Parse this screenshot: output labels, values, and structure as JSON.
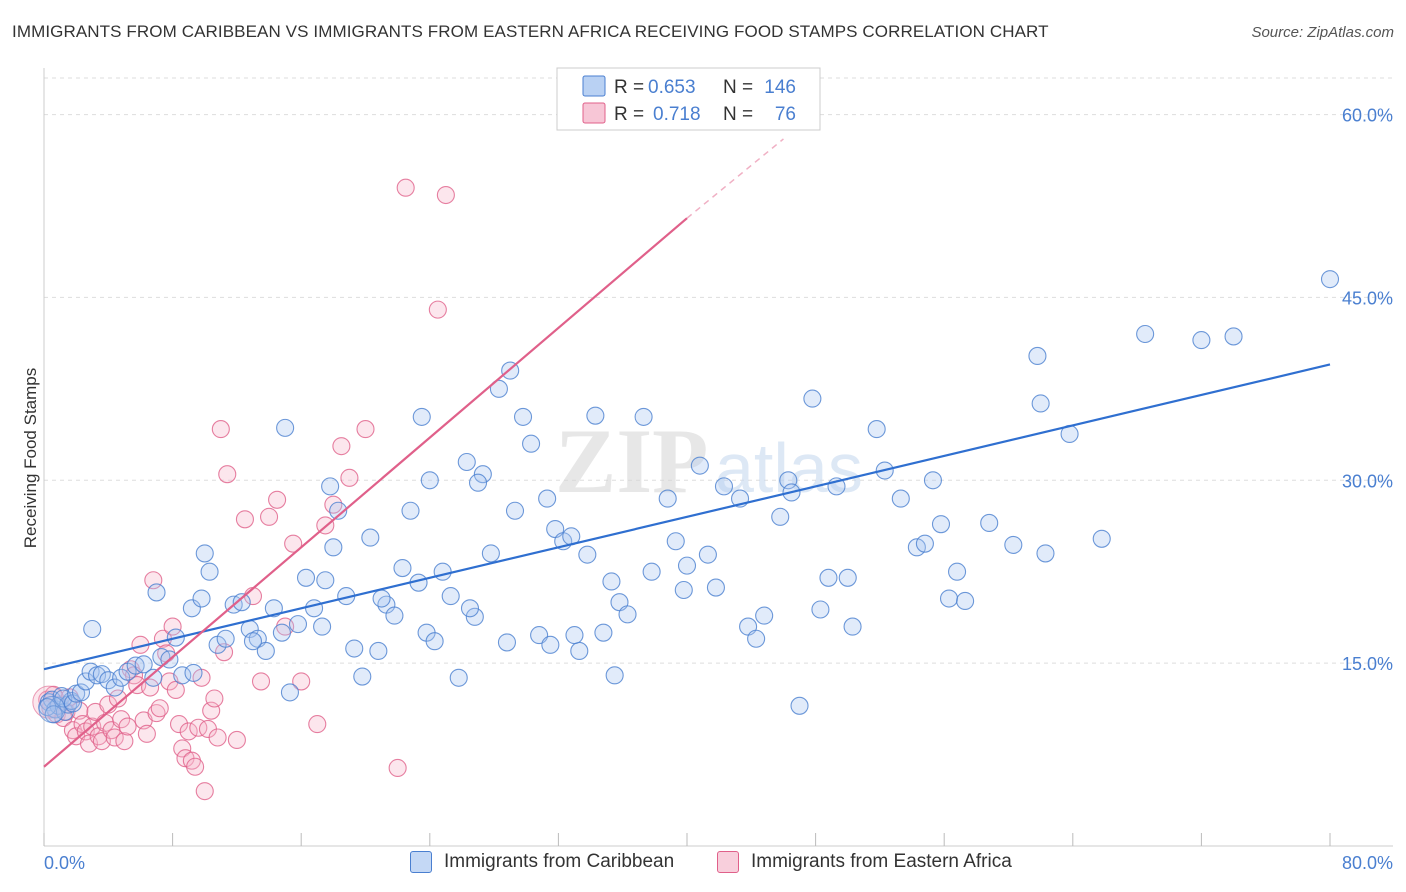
{
  "title": "IMMIGRANTS FROM CARIBBEAN VS IMMIGRANTS FROM EASTERN AFRICA RECEIVING FOOD STAMPS CORRELATION CHART",
  "source": "Source: ZipAtlas.com",
  "watermark": {
    "zip": "ZIP",
    "atlas": "atlas"
  },
  "colors": {
    "blue": "#4a7fd0",
    "blue_fill": "#a8c6f0",
    "blue_line": "#2f6fd0",
    "pink": "#e0608a",
    "pink_fill": "#f5b8cc",
    "pink_line": "#e0608a"
  },
  "legend_top": {
    "rows": [
      {
        "r_label": "R =",
        "r_value": "0.653",
        "n_label": "N =",
        "n_value": "146"
      },
      {
        "r_label": "R =",
        "r_value": "0.718",
        "n_label": "N =",
        "n_value": "76"
      }
    ]
  },
  "legend_bottom": {
    "caribbean": "Immigrants from Caribbean",
    "eastern_africa": "Immigrants from Eastern Africa"
  },
  "chart_data": {
    "type": "scatter",
    "title": "IMMIGRANTS FROM CARIBBEAN VS IMMIGRANTS FROM EASTERN AFRICA RECEIVING FOOD STAMPS CORRELATION CHART",
    "xlabel": "",
    "ylabel": "Receiving Food Stamps",
    "xlim": [
      0,
      80
    ],
    "ylim": [
      0,
      63
    ],
    "x_tick_labels": [
      "0.0%",
      "80.0%"
    ],
    "y_ticks": [
      15,
      30,
      45,
      60
    ],
    "y_tick_labels": [
      "15.0%",
      "30.0%",
      "45.0%",
      "60.0%"
    ],
    "grid": true,
    "series": [
      {
        "name": "Immigrants from Caribbean",
        "color": "#4a7fd0",
        "R": 0.653,
        "N": 146,
        "trend": {
          "x": [
            0,
            80
          ],
          "y": [
            14.5,
            39.5
          ],
          "dashed_from": null
        },
        "points": [
          [
            0.3,
            11.8
          ],
          [
            0.5,
            12.0
          ],
          [
            0.7,
            11.2
          ],
          [
            0.9,
            11.5
          ],
          [
            1.1,
            12.3
          ],
          [
            1.3,
            11.0
          ],
          [
            1.5,
            11.6
          ],
          [
            1.7,
            11.9
          ],
          [
            0.2,
            11.4
          ],
          [
            0.6,
            10.8
          ],
          [
            1.2,
            12.1
          ],
          [
            1.8,
            11.7
          ],
          [
            2.0,
            12.5
          ],
          [
            2.3,
            12.6
          ],
          [
            2.6,
            13.5
          ],
          [
            2.9,
            14.3
          ],
          [
            3.3,
            14.0
          ],
          [
            3.6,
            14.1
          ],
          [
            4.0,
            13.6
          ],
          [
            4.4,
            13.0
          ],
          [
            4.8,
            13.8
          ],
          [
            5.2,
            14.3
          ],
          [
            5.7,
            14.8
          ],
          [
            6.2,
            14.9
          ],
          [
            6.8,
            13.8
          ],
          [
            7.3,
            15.5
          ],
          [
            7.8,
            15.3
          ],
          [
            8.2,
            17.1
          ],
          [
            8.6,
            14.0
          ],
          [
            9.2,
            19.5
          ],
          [
            9.8,
            20.3
          ],
          [
            10.3,
            22.5
          ],
          [
            10.8,
            16.5
          ],
          [
            11.3,
            17.0
          ],
          [
            11.8,
            19.8
          ],
          [
            12.3,
            20.0
          ],
          [
            12.8,
            17.8
          ],
          [
            13.3,
            17.0
          ],
          [
            13.8,
            16.0
          ],
          [
            14.3,
            19.5
          ],
          [
            14.8,
            17.5
          ],
          [
            15.3,
            12.6
          ],
          [
            15.8,
            18.2
          ],
          [
            16.3,
            22.0
          ],
          [
            16.8,
            19.5
          ],
          [
            17.3,
            18.0
          ],
          [
            17.8,
            29.5
          ],
          [
            18.3,
            27.5
          ],
          [
            18.8,
            20.5
          ],
          [
            19.3,
            16.2
          ],
          [
            19.8,
            13.9
          ],
          [
            20.3,
            25.3
          ],
          [
            20.8,
            16.0
          ],
          [
            21.3,
            19.8
          ],
          [
            21.8,
            18.9
          ],
          [
            22.3,
            22.8
          ],
          [
            22.8,
            27.5
          ],
          [
            23.3,
            21.6
          ],
          [
            23.8,
            17.5
          ],
          [
            24.3,
            16.8
          ],
          [
            24.8,
            22.5
          ],
          [
            25.3,
            20.5
          ],
          [
            25.8,
            13.8
          ],
          [
            26.3,
            31.5
          ],
          [
            26.8,
            18.8
          ],
          [
            27.3,
            30.5
          ],
          [
            27.8,
            24.0
          ],
          [
            28.3,
            37.5
          ],
          [
            28.8,
            16.7
          ],
          [
            29.3,
            27.5
          ],
          [
            29.8,
            35.2
          ],
          [
            30.3,
            33.0
          ],
          [
            30.8,
            17.3
          ],
          [
            31.3,
            28.5
          ],
          [
            31.8,
            26.0
          ],
          [
            32.3,
            25.0
          ],
          [
            32.8,
            25.4
          ],
          [
            33.3,
            16.0
          ],
          [
            33.8,
            23.9
          ],
          [
            34.3,
            35.3
          ],
          [
            34.8,
            17.5
          ],
          [
            35.3,
            21.7
          ],
          [
            35.8,
            20.0
          ],
          [
            36.3,
            19.0
          ],
          [
            37.3,
            35.2
          ],
          [
            37.8,
            22.5
          ],
          [
            38.8,
            28.5
          ],
          [
            39.3,
            25.0
          ],
          [
            39.8,
            21.0
          ],
          [
            40.8,
            31.2
          ],
          [
            41.3,
            23.9
          ],
          [
            41.8,
            21.2
          ],
          [
            42.3,
            29.5
          ],
          [
            43.3,
            28.5
          ],
          [
            43.8,
            18.0
          ],
          [
            44.3,
            17.0
          ],
          [
            44.8,
            18.9
          ],
          [
            45.8,
            27.0
          ],
          [
            46.3,
            30.0
          ],
          [
            47.8,
            36.7
          ],
          [
            48.3,
            19.4
          ],
          [
            48.8,
            22.0
          ],
          [
            49.3,
            29.5
          ],
          [
            50.3,
            18.0
          ],
          [
            51.8,
            34.2
          ],
          [
            52.3,
            30.8
          ],
          [
            53.3,
            28.5
          ],
          [
            54.3,
            24.5
          ],
          [
            54.8,
            24.8
          ],
          [
            55.3,
            30.0
          ],
          [
            55.8,
            26.4
          ],
          [
            56.3,
            20.3
          ],
          [
            56.8,
            22.5
          ],
          [
            57.3,
            20.1
          ],
          [
            58.8,
            26.5
          ],
          [
            60.3,
            24.7
          ],
          [
            61.8,
            40.2
          ],
          [
            62.3,
            24.0
          ],
          [
            63.8,
            33.8
          ],
          [
            65.8,
            25.2
          ],
          [
            9.3,
            14.2
          ],
          [
            13.0,
            16.8
          ],
          [
            18.0,
            24.5
          ],
          [
            23.5,
            35.2
          ],
          [
            26.5,
            19.5
          ],
          [
            29.0,
            39.0
          ],
          [
            31.5,
            16.5
          ],
          [
            35.5,
            14.0
          ],
          [
            40.0,
            23.0
          ],
          [
            46.5,
            29.0
          ],
          [
            7.0,
            20.8
          ],
          [
            10.0,
            24.0
          ],
          [
            15.0,
            34.3
          ],
          [
            17.5,
            21.8
          ],
          [
            21.0,
            20.3
          ],
          [
            24.0,
            30.0
          ],
          [
            27.0,
            29.8
          ],
          [
            33.0,
            17.3
          ],
          [
            47.0,
            11.5
          ],
          [
            50.0,
            22.0
          ],
          [
            62.0,
            36.3
          ],
          [
            68.5,
            42.0
          ],
          [
            72.0,
            41.5
          ],
          [
            74.0,
            41.8
          ],
          [
            80.0,
            46.5
          ],
          [
            3.0,
            17.8
          ]
        ]
      },
      {
        "name": "Immigrants from Eastern Africa",
        "color": "#e0608a",
        "R": 0.718,
        "N": 76,
        "trend": {
          "x": [
            0,
            40
          ],
          "y": [
            6.5,
            51.5
          ],
          "dashed_from": 40,
          "dashed_to": [
            46,
            58
          ]
        },
        "points": [
          [
            0.2,
            12.0
          ],
          [
            0.4,
            11.3
          ],
          [
            0.6,
            12.4
          ],
          [
            0.8,
            10.8
          ],
          [
            1.0,
            11.6
          ],
          [
            1.2,
            10.5
          ],
          [
            1.4,
            11.0
          ],
          [
            1.6,
            12.2
          ],
          [
            1.8,
            9.5
          ],
          [
            2.0,
            9.0
          ],
          [
            2.2,
            11.1
          ],
          [
            2.4,
            10.0
          ],
          [
            2.6,
            9.4
          ],
          [
            2.8,
            8.4
          ],
          [
            3.0,
            9.8
          ],
          [
            3.2,
            11.0
          ],
          [
            3.4,
            9.0
          ],
          [
            3.6,
            8.6
          ],
          [
            3.8,
            10.1
          ],
          [
            4.0,
            11.6
          ],
          [
            4.2,
            9.5
          ],
          [
            4.4,
            8.9
          ],
          [
            4.6,
            12.1
          ],
          [
            4.8,
            10.4
          ],
          [
            5.0,
            8.6
          ],
          [
            5.2,
            9.8
          ],
          [
            5.4,
            14.5
          ],
          [
            5.6,
            14.0
          ],
          [
            5.8,
            13.2
          ],
          [
            6.0,
            16.5
          ],
          [
            6.2,
            10.3
          ],
          [
            6.4,
            9.2
          ],
          [
            6.6,
            13.0
          ],
          [
            6.8,
            21.8
          ],
          [
            7.0,
            10.9
          ],
          [
            7.2,
            11.3
          ],
          [
            7.4,
            17.0
          ],
          [
            7.6,
            15.8
          ],
          [
            7.8,
            13.5
          ],
          [
            8.0,
            18.0
          ],
          [
            8.2,
            12.8
          ],
          [
            8.4,
            10.0
          ],
          [
            8.6,
            8.0
          ],
          [
            8.8,
            7.2
          ],
          [
            9.0,
            9.4
          ],
          [
            9.2,
            7.0
          ],
          [
            9.4,
            6.5
          ],
          [
            9.6,
            9.7
          ],
          [
            9.8,
            13.8
          ],
          [
            10.0,
            4.5
          ],
          [
            10.2,
            9.6
          ],
          [
            10.4,
            11.1
          ],
          [
            10.6,
            12.1
          ],
          [
            10.8,
            8.9
          ],
          [
            11.0,
            34.2
          ],
          [
            11.2,
            15.9
          ],
          [
            11.4,
            30.5
          ],
          [
            12.0,
            8.7
          ],
          [
            12.5,
            26.8
          ],
          [
            13.0,
            20.5
          ],
          [
            13.5,
            13.5
          ],
          [
            14.0,
            27.0
          ],
          [
            14.5,
            28.4
          ],
          [
            15.0,
            18.0
          ],
          [
            15.5,
            24.8
          ],
          [
            16.0,
            13.5
          ],
          [
            17.0,
            10.0
          ],
          [
            17.5,
            26.3
          ],
          [
            18.0,
            28.0
          ],
          [
            18.5,
            32.8
          ],
          [
            19.0,
            30.2
          ],
          [
            20.0,
            34.2
          ],
          [
            22.0,
            6.4
          ],
          [
            22.5,
            54.0
          ],
          [
            24.5,
            44.0
          ],
          [
            25.0,
            53.4
          ]
        ]
      }
    ]
  }
}
